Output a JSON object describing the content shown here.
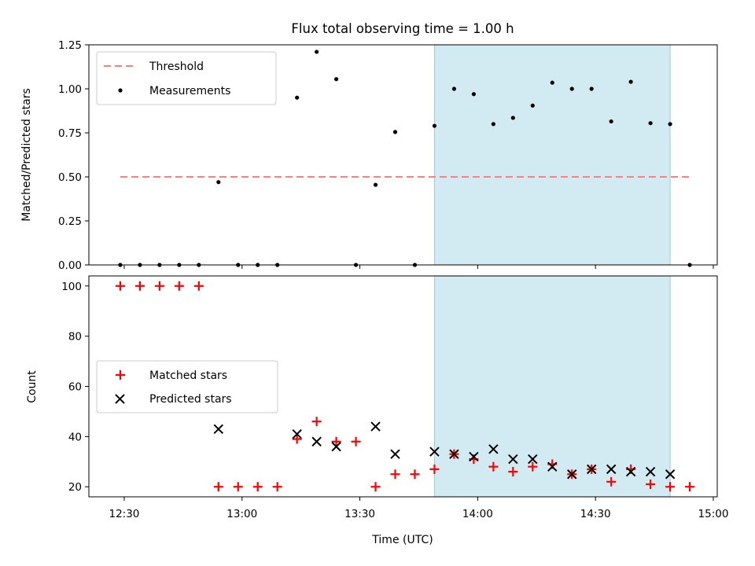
{
  "chart_data": [
    {
      "type": "scatter",
      "title": "Flux total observing time = 1.00 h",
      "ylabel": "Matched/Predicted stars",
      "xlabel": "",
      "ylim": [
        0,
        1.25
      ],
      "yticks": [
        0.0,
        0.25,
        0.5,
        0.75,
        1.0,
        1.25
      ],
      "ytick_labels": [
        "0.00",
        "0.25",
        "0.50",
        "0.75",
        "1.00",
        "1.25"
      ],
      "xlim": [
        "12:21",
        "15:01"
      ],
      "xticks": [
        "12:30",
        "13:00",
        "13:30",
        "14:00",
        "14:30",
        "15:00"
      ],
      "shaded_region": {
        "start": "13:49",
        "end": "14:49",
        "color": "#add8e6"
      },
      "threshold": {
        "name": "Threshold",
        "y": 0.5,
        "x_start": "12:29",
        "x_end": "14:54",
        "color": "#ff7f7f",
        "style": "dashed"
      },
      "legend": {
        "location": "upper left",
        "entries": [
          "Threshold",
          "Measurements"
        ]
      },
      "series": [
        {
          "name": "Measurements",
          "marker": "dot",
          "color": "#000000",
          "points": [
            {
              "x": "12:29",
              "y": 0.0
            },
            {
              "x": "12:34",
              "y": 0.0
            },
            {
              "x": "12:39",
              "y": 0.0
            },
            {
              "x": "12:44",
              "y": 0.0
            },
            {
              "x": "12:49",
              "y": 0.0
            },
            {
              "x": "12:54",
              "y": 0.47
            },
            {
              "x": "12:59",
              "y": 0.0
            },
            {
              "x": "13:04",
              "y": 0.0
            },
            {
              "x": "13:09",
              "y": 0.0
            },
            {
              "x": "13:14",
              "y": 0.95
            },
            {
              "x": "13:19",
              "y": 1.21
            },
            {
              "x": "13:24",
              "y": 1.055
            },
            {
              "x": "13:29",
              "y": 0.0
            },
            {
              "x": "13:34",
              "y": 0.455
            },
            {
              "x": "13:39",
              "y": 0.755
            },
            {
              "x": "13:44",
              "y": 0.0
            },
            {
              "x": "13:49",
              "y": 0.79
            },
            {
              "x": "13:54",
              "y": 1.0
            },
            {
              "x": "13:59",
              "y": 0.97
            },
            {
              "x": "14:04",
              "y": 0.8
            },
            {
              "x": "14:09",
              "y": 0.835
            },
            {
              "x": "14:14",
              "y": 0.905
            },
            {
              "x": "14:19",
              "y": 1.035
            },
            {
              "x": "14:24",
              "y": 1.0
            },
            {
              "x": "14:29",
              "y": 1.0
            },
            {
              "x": "14:34",
              "y": 0.815
            },
            {
              "x": "14:39",
              "y": 1.04
            },
            {
              "x": "14:44",
              "y": 0.805
            },
            {
              "x": "14:49",
              "y": 0.8
            },
            {
              "x": "14:54",
              "y": 0.0
            }
          ]
        }
      ]
    },
    {
      "type": "scatter",
      "title": "",
      "ylabel": "Count",
      "xlabel": "Time (UTC)",
      "ylim": [
        16,
        104
      ],
      "yticks": [
        20,
        40,
        60,
        80,
        100
      ],
      "ytick_labels": [
        "20",
        "40",
        "60",
        "80",
        "100"
      ],
      "xlim": [
        "12:21",
        "15:01"
      ],
      "xticks": [
        "12:30",
        "13:00",
        "13:30",
        "14:00",
        "14:30",
        "15:00"
      ],
      "xtick_labels": [
        "12:30",
        "13:00",
        "13:30",
        "14:00",
        "14:30",
        "15:00"
      ],
      "shaded_region": {
        "start": "13:49",
        "end": "14:49",
        "color": "#add8e6"
      },
      "legend": {
        "location": "center left",
        "entries": [
          "Matched stars",
          "Predicted stars"
        ]
      },
      "series": [
        {
          "name": "Matched stars",
          "marker": "plus",
          "color": "#ff0000",
          "points": [
            {
              "x": "12:29",
              "y": 100
            },
            {
              "x": "12:34",
              "y": 100
            },
            {
              "x": "12:39",
              "y": 100
            },
            {
              "x": "12:44",
              "y": 100
            },
            {
              "x": "12:49",
              "y": 100
            },
            {
              "x": "12:54",
              "y": 20
            },
            {
              "x": "12:59",
              "y": 20
            },
            {
              "x": "13:04",
              "y": 20
            },
            {
              "x": "13:09",
              "y": 20
            },
            {
              "x": "13:14",
              "y": 39
            },
            {
              "x": "13:19",
              "y": 46
            },
            {
              "x": "13:24",
              "y": 38
            },
            {
              "x": "13:29",
              "y": 38
            },
            {
              "x": "13:34",
              "y": 20
            },
            {
              "x": "13:39",
              "y": 25
            },
            {
              "x": "13:44",
              "y": 25
            },
            {
              "x": "13:49",
              "y": 27
            },
            {
              "x": "13:54",
              "y": 33
            },
            {
              "x": "13:59",
              "y": 31
            },
            {
              "x": "14:04",
              "y": 28
            },
            {
              "x": "14:09",
              "y": 26
            },
            {
              "x": "14:14",
              "y": 28
            },
            {
              "x": "14:19",
              "y": 29
            },
            {
              "x": "14:24",
              "y": 25
            },
            {
              "x": "14:29",
              "y": 27
            },
            {
              "x": "14:34",
              "y": 22
            },
            {
              "x": "14:39",
              "y": 27
            },
            {
              "x": "14:44",
              "y": 21
            },
            {
              "x": "14:49",
              "y": 20
            },
            {
              "x": "14:54",
              "y": 20
            }
          ]
        },
        {
          "name": "Predicted stars",
          "marker": "x",
          "color": "#000000",
          "points": [
            {
              "x": "12:54",
              "y": 43
            },
            {
              "x": "13:14",
              "y": 41
            },
            {
              "x": "13:19",
              "y": 38
            },
            {
              "x": "13:24",
              "y": 36
            },
            {
              "x": "13:34",
              "y": 44
            },
            {
              "x": "13:39",
              "y": 33
            },
            {
              "x": "13:49",
              "y": 34
            },
            {
              "x": "13:54",
              "y": 33
            },
            {
              "x": "13:59",
              "y": 32
            },
            {
              "x": "14:04",
              "y": 35
            },
            {
              "x": "14:09",
              "y": 31
            },
            {
              "x": "14:14",
              "y": 31
            },
            {
              "x": "14:19",
              "y": 28
            },
            {
              "x": "14:24",
              "y": 25
            },
            {
              "x": "14:29",
              "y": 27
            },
            {
              "x": "14:34",
              "y": 27
            },
            {
              "x": "14:39",
              "y": 26
            },
            {
              "x": "14:44",
              "y": 26
            },
            {
              "x": "14:49",
              "y": 25
            }
          ]
        }
      ]
    }
  ]
}
